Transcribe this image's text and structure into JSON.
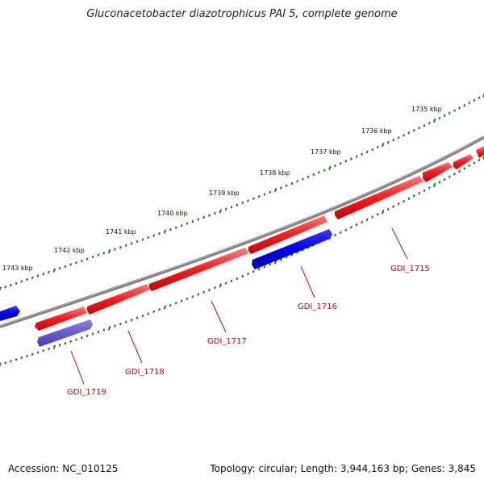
{
  "title": "Gluconacetobacter diazotrophicus PAI 5, complete genome",
  "accession": "Accession: NC_010125",
  "summary": "Topology: circular; Length: 3,944,163 bp; Genes: 3,845",
  "colors": {
    "forward_gene": "#ff1a1a",
    "reverse_gene": "#0000ee",
    "reverse_gene_pale": "#6a5acd",
    "backbone": "#808080",
    "tick": "#1a7a1a",
    "label": "#cc0000"
  },
  "ticks": [
    "1735 kbp",
    "1736 kbp",
    "1737 kbp",
    "1738 kbp",
    "1739 kbp",
    "1740 kbp",
    "1741 kbp",
    "1742 kbp",
    "1743 kbp"
  ],
  "genes": [
    {
      "label": "GDI_1715",
      "strand": "forward"
    },
    {
      "label": "GDI_1716",
      "strand": "reverse"
    },
    {
      "label": "GDI_1717",
      "strand": "forward"
    },
    {
      "label": "GDI_1718",
      "strand": "forward"
    },
    {
      "label": "GDI_1719",
      "strand": "reverse"
    }
  ]
}
